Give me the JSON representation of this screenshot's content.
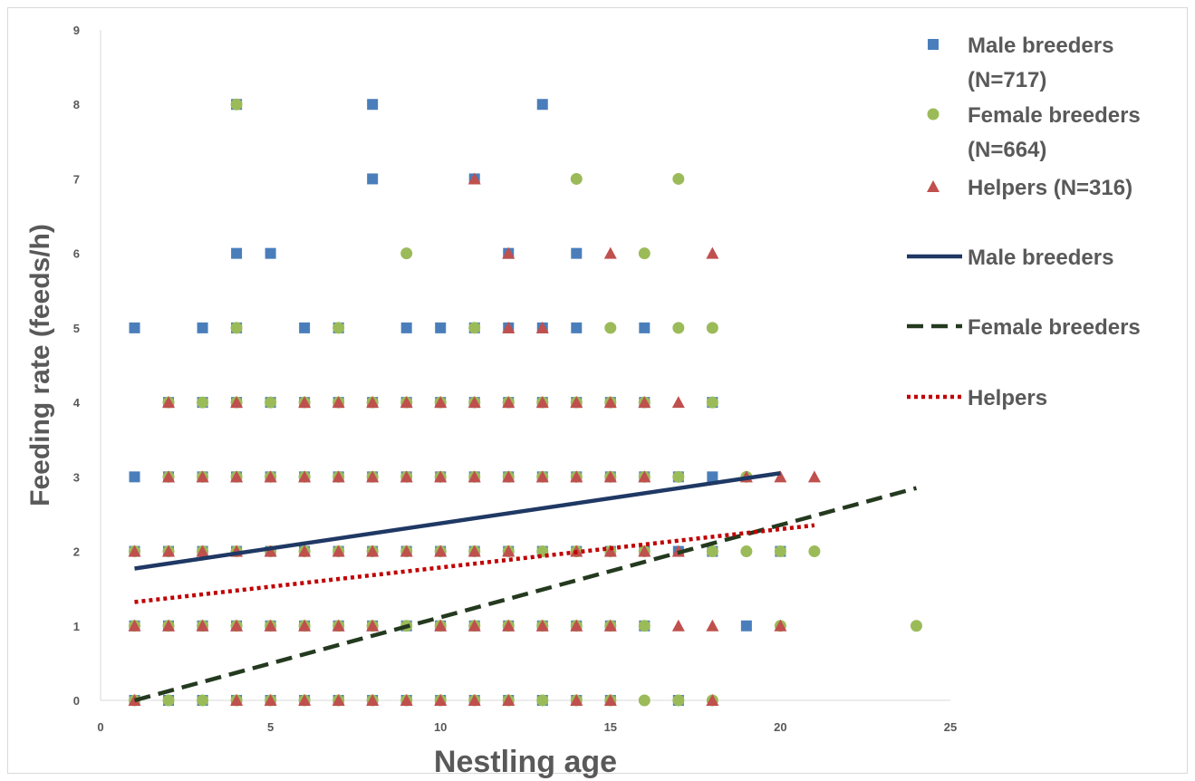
{
  "chart_data": {
    "type": "scatter",
    "title": "",
    "xlabel": "Nestling age",
    "ylabel": "Feeding rate (feeds/h)",
    "xlim": [
      0,
      25
    ],
    "ylim": [
      0,
      9
    ],
    "xticks": [
      "0",
      "5",
      "10",
      "15",
      "20",
      "25"
    ],
    "yticks": [
      "0",
      "1",
      "2",
      "3",
      "4",
      "5",
      "6",
      "7",
      "8",
      "9"
    ],
    "grid": false,
    "legend_position": "right",
    "series": [
      {
        "name": "Male breeders (N=717)",
        "legend_lines": [
          "Male breeders",
          "(N=717)"
        ],
        "marker": "square",
        "color": "#4a7ebb",
        "points": [
          [
            1,
            0
          ],
          [
            2,
            0
          ],
          [
            3,
            0
          ],
          [
            4,
            0
          ],
          [
            5,
            0
          ],
          [
            6,
            0
          ],
          [
            7,
            0
          ],
          [
            8,
            0
          ],
          [
            9,
            0
          ],
          [
            10,
            0
          ],
          [
            11,
            0
          ],
          [
            12,
            0
          ],
          [
            13,
            0
          ],
          [
            14,
            0
          ],
          [
            15,
            0
          ],
          [
            17,
            0
          ],
          [
            1,
            1
          ],
          [
            2,
            1
          ],
          [
            3,
            1
          ],
          [
            4,
            1
          ],
          [
            5,
            1
          ],
          [
            6,
            1
          ],
          [
            7,
            1
          ],
          [
            8,
            1
          ],
          [
            9,
            1
          ],
          [
            10,
            1
          ],
          [
            11,
            1
          ],
          [
            12,
            1
          ],
          [
            13,
            1
          ],
          [
            14,
            1
          ],
          [
            15,
            1
          ],
          [
            16,
            1
          ],
          [
            19,
            1
          ],
          [
            1,
            2
          ],
          [
            2,
            2
          ],
          [
            3,
            2
          ],
          [
            4,
            2
          ],
          [
            5,
            2
          ],
          [
            6,
            2
          ],
          [
            7,
            2
          ],
          [
            8,
            2
          ],
          [
            9,
            2
          ],
          [
            10,
            2
          ],
          [
            11,
            2
          ],
          [
            12,
            2
          ],
          [
            13,
            2
          ],
          [
            14,
            2
          ],
          [
            15,
            2
          ],
          [
            16,
            2
          ],
          [
            17,
            2
          ],
          [
            18,
            2
          ],
          [
            20,
            2
          ],
          [
            1,
            3
          ],
          [
            2,
            3
          ],
          [
            3,
            3
          ],
          [
            4,
            3
          ],
          [
            5,
            3
          ],
          [
            6,
            3
          ],
          [
            7,
            3
          ],
          [
            8,
            3
          ],
          [
            9,
            3
          ],
          [
            10,
            3
          ],
          [
            11,
            3
          ],
          [
            12,
            3
          ],
          [
            13,
            3
          ],
          [
            14,
            3
          ],
          [
            15,
            3
          ],
          [
            16,
            3
          ],
          [
            17,
            3
          ],
          [
            18,
            3
          ],
          [
            2,
            4
          ],
          [
            3,
            4
          ],
          [
            4,
            4
          ],
          [
            5,
            4
          ],
          [
            6,
            4
          ],
          [
            7,
            4
          ],
          [
            8,
            4
          ],
          [
            9,
            4
          ],
          [
            10,
            4
          ],
          [
            11,
            4
          ],
          [
            12,
            4
          ],
          [
            13,
            4
          ],
          [
            14,
            4
          ],
          [
            15,
            4
          ],
          [
            16,
            4
          ],
          [
            18,
            4
          ],
          [
            1,
            5
          ],
          [
            3,
            5
          ],
          [
            4,
            5
          ],
          [
            6,
            5
          ],
          [
            7,
            5
          ],
          [
            9,
            5
          ],
          [
            10,
            5
          ],
          [
            11,
            5
          ],
          [
            12,
            5
          ],
          [
            13,
            5
          ],
          [
            14,
            5
          ],
          [
            16,
            5
          ],
          [
            4,
            6
          ],
          [
            5,
            6
          ],
          [
            12,
            6
          ],
          [
            14,
            6
          ],
          [
            8,
            7
          ],
          [
            11,
            7
          ],
          [
            4,
            8
          ],
          [
            8,
            8
          ],
          [
            13,
            8
          ]
        ]
      },
      {
        "name": "Female breeders (N=664)",
        "legend_lines": [
          "Female breeders",
          "(N=664)"
        ],
        "marker": "circle",
        "color": "#9bbb59",
        "points": [
          [
            1,
            0
          ],
          [
            2,
            0
          ],
          [
            3,
            0
          ],
          [
            4,
            0
          ],
          [
            5,
            0
          ],
          [
            6,
            0
          ],
          [
            7,
            0
          ],
          [
            8,
            0
          ],
          [
            9,
            0
          ],
          [
            10,
            0
          ],
          [
            11,
            0
          ],
          [
            12,
            0
          ],
          [
            13,
            0
          ],
          [
            14,
            0
          ],
          [
            15,
            0
          ],
          [
            16,
            0
          ],
          [
            17,
            0
          ],
          [
            18,
            0
          ],
          [
            1,
            1
          ],
          [
            2,
            1
          ],
          [
            3,
            1
          ],
          [
            4,
            1
          ],
          [
            5,
            1
          ],
          [
            6,
            1
          ],
          [
            7,
            1
          ],
          [
            8,
            1
          ],
          [
            9,
            1
          ],
          [
            10,
            1
          ],
          [
            11,
            1
          ],
          [
            12,
            1
          ],
          [
            13,
            1
          ],
          [
            14,
            1
          ],
          [
            15,
            1
          ],
          [
            16,
            1
          ],
          [
            20,
            1
          ],
          [
            24,
            1
          ],
          [
            1,
            2
          ],
          [
            2,
            2
          ],
          [
            3,
            2
          ],
          [
            4,
            2
          ],
          [
            5,
            2
          ],
          [
            6,
            2
          ],
          [
            7,
            2
          ],
          [
            8,
            2
          ],
          [
            9,
            2
          ],
          [
            10,
            2
          ],
          [
            11,
            2
          ],
          [
            12,
            2
          ],
          [
            13,
            2
          ],
          [
            14,
            2
          ],
          [
            15,
            2
          ],
          [
            16,
            2
          ],
          [
            18,
            2
          ],
          [
            19,
            2
          ],
          [
            20,
            2
          ],
          [
            21,
            2
          ],
          [
            2,
            3
          ],
          [
            3,
            3
          ],
          [
            4,
            3
          ],
          [
            5,
            3
          ],
          [
            6,
            3
          ],
          [
            7,
            3
          ],
          [
            8,
            3
          ],
          [
            9,
            3
          ],
          [
            10,
            3
          ],
          [
            11,
            3
          ],
          [
            12,
            3
          ],
          [
            13,
            3
          ],
          [
            14,
            3
          ],
          [
            15,
            3
          ],
          [
            16,
            3
          ],
          [
            17,
            3
          ],
          [
            19,
            3
          ],
          [
            2,
            4
          ],
          [
            3,
            4
          ],
          [
            4,
            4
          ],
          [
            5,
            4
          ],
          [
            6,
            4
          ],
          [
            7,
            4
          ],
          [
            8,
            4
          ],
          [
            9,
            4
          ],
          [
            10,
            4
          ],
          [
            11,
            4
          ],
          [
            12,
            4
          ],
          [
            13,
            4
          ],
          [
            14,
            4
          ],
          [
            15,
            4
          ],
          [
            16,
            4
          ],
          [
            18,
            4
          ],
          [
            4,
            5
          ],
          [
            7,
            5
          ],
          [
            11,
            5
          ],
          [
            15,
            5
          ],
          [
            17,
            5
          ],
          [
            18,
            5
          ],
          [
            9,
            6
          ],
          [
            16,
            6
          ],
          [
            14,
            7
          ],
          [
            17,
            7
          ],
          [
            4,
            8
          ]
        ]
      },
      {
        "name": "Helpers (N=316)",
        "legend_lines": [
          "Helpers (N=316)"
        ],
        "marker": "triangle",
        "color": "#c0504d",
        "points": [
          [
            1,
            0
          ],
          [
            4,
            0
          ],
          [
            5,
            0
          ],
          [
            6,
            0
          ],
          [
            7,
            0
          ],
          [
            8,
            0
          ],
          [
            9,
            0
          ],
          [
            10,
            0
          ],
          [
            11,
            0
          ],
          [
            12,
            0
          ],
          [
            14,
            0
          ],
          [
            15,
            0
          ],
          [
            18,
            0
          ],
          [
            1,
            1
          ],
          [
            2,
            1
          ],
          [
            3,
            1
          ],
          [
            4,
            1
          ],
          [
            5,
            1
          ],
          [
            6,
            1
          ],
          [
            7,
            1
          ],
          [
            8,
            1
          ],
          [
            10,
            1
          ],
          [
            11,
            1
          ],
          [
            12,
            1
          ],
          [
            13,
            1
          ],
          [
            14,
            1
          ],
          [
            15,
            1
          ],
          [
            17,
            1
          ],
          [
            18,
            1
          ],
          [
            20,
            1
          ],
          [
            1,
            2
          ],
          [
            2,
            2
          ],
          [
            3,
            2
          ],
          [
            4,
            2
          ],
          [
            5,
            2
          ],
          [
            6,
            2
          ],
          [
            7,
            2
          ],
          [
            8,
            2
          ],
          [
            9,
            2
          ],
          [
            10,
            2
          ],
          [
            11,
            2
          ],
          [
            12,
            2
          ],
          [
            14,
            2
          ],
          [
            15,
            2
          ],
          [
            16,
            2
          ],
          [
            17,
            2
          ],
          [
            2,
            3
          ],
          [
            3,
            3
          ],
          [
            4,
            3
          ],
          [
            5,
            3
          ],
          [
            6,
            3
          ],
          [
            7,
            3
          ],
          [
            8,
            3
          ],
          [
            9,
            3
          ],
          [
            10,
            3
          ],
          [
            11,
            3
          ],
          [
            12,
            3
          ],
          [
            13,
            3
          ],
          [
            14,
            3
          ],
          [
            15,
            3
          ],
          [
            16,
            3
          ],
          [
            19,
            3
          ],
          [
            20,
            3
          ],
          [
            21,
            3
          ],
          [
            2,
            4
          ],
          [
            4,
            4
          ],
          [
            6,
            4
          ],
          [
            7,
            4
          ],
          [
            8,
            4
          ],
          [
            9,
            4
          ],
          [
            10,
            4
          ],
          [
            11,
            4
          ],
          [
            12,
            4
          ],
          [
            13,
            4
          ],
          [
            14,
            4
          ],
          [
            15,
            4
          ],
          [
            16,
            4
          ],
          [
            17,
            4
          ],
          [
            12,
            5
          ],
          [
            13,
            5
          ],
          [
            12,
            6
          ],
          [
            15,
            6
          ],
          [
            18,
            6
          ],
          [
            11,
            7
          ]
        ]
      }
    ],
    "trend_lines": [
      {
        "name": "Male breeders",
        "style": "solid",
        "color": "#1f3864",
        "x": [
          1,
          20
        ],
        "y": [
          1.77,
          3.05
        ]
      },
      {
        "name": "Female breeders",
        "style": "dashed",
        "color": "#243a1f",
        "x": [
          1,
          24
        ],
        "y": [
          0.0,
          2.85
        ]
      },
      {
        "name": "Helpers",
        "style": "dotted",
        "color": "#c00000",
        "x": [
          1,
          21
        ],
        "y": [
          1.32,
          2.35
        ]
      }
    ]
  }
}
